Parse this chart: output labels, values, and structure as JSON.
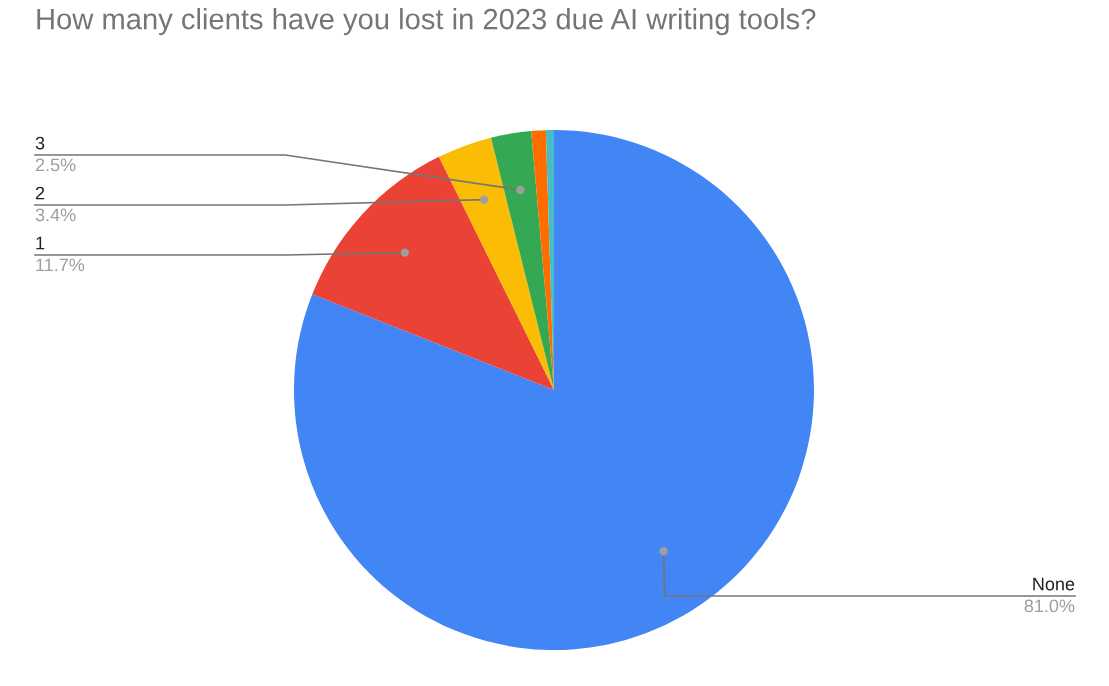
{
  "chart_data": {
    "type": "pie",
    "title": "How many clients have you lost in 2023 due AI writing tools?",
    "categories": [
      "None",
      "1",
      "2",
      "3",
      null,
      null
    ],
    "values": [
      81.0,
      11.7,
      3.4,
      2.5,
      0.9,
      0.5
    ],
    "colors": [
      "#4285f4",
      "#ea4335",
      "#fbbc04",
      "#34a853",
      "#ff6d01",
      "#46bdc6"
    ],
    "value_labels": [
      "81.0%",
      "11.7%",
      "3.4%",
      "2.5%",
      null,
      null
    ],
    "legend": false
  }
}
